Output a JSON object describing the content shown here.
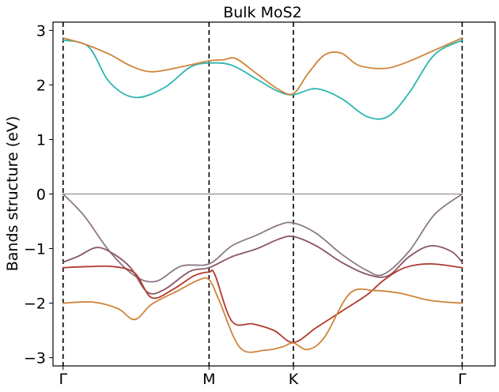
{
  "chart_data": {
    "type": "line",
    "title": "Bulk MoS2",
    "xlabel": "",
    "ylabel": "Bands structure (eV)",
    "xlim": [
      -0.12,
      5.12
    ],
    "ylim": [
      -3.15,
      3.15
    ],
    "yticks": [
      -3,
      -2,
      -1,
      0,
      1,
      2,
      3
    ],
    "ytick_labels": [
      "−3",
      "−2",
      "−1",
      "0",
      "1",
      "2",
      "3"
    ],
    "kpoints": [
      {
        "label": "Γ",
        "x": 0
      },
      {
        "label": "M",
        "x": 1.73
      },
      {
        "label": "K",
        "x": 2.73
      },
      {
        "label": "Γ",
        "x": 4.73
      }
    ],
    "fermi_level": 0,
    "grid": false,
    "legend": "none",
    "colors": {
      "cond_teal": "#2ab5b0",
      "cond_orange": "#d0843a",
      "val_top": "#8d7888",
      "val_mauve": "#8b5560",
      "val_red": "#b03a2e",
      "val_orange": "#d0843a",
      "fermi": "#808080",
      "kline": "#000000"
    },
    "series": [
      {
        "color_key": "cond_teal",
        "x": [
          0,
          0.3,
          0.55,
          0.85,
          1.2,
          1.5,
          1.73,
          2.0,
          2.3,
          2.55,
          2.73,
          3.0,
          3.3,
          3.6,
          3.85,
          4.1,
          4.4,
          4.73
        ],
        "y": [
          2.82,
          2.7,
          2.05,
          1.77,
          1.95,
          2.32,
          2.4,
          2.36,
          2.1,
          1.88,
          1.82,
          1.93,
          1.75,
          1.42,
          1.42,
          1.85,
          2.55,
          2.82
        ]
      },
      {
        "color_key": "cond_orange",
        "x": [
          0,
          0.25,
          0.55,
          0.8,
          1.05,
          1.4,
          1.73,
          1.9,
          2.05,
          2.3,
          2.55,
          2.73,
          2.9,
          3.1,
          3.3,
          3.5,
          3.8,
          4.05,
          4.35,
          4.73
        ],
        "y": [
          2.86,
          2.75,
          2.56,
          2.35,
          2.24,
          2.33,
          2.44,
          2.46,
          2.48,
          2.2,
          1.92,
          1.84,
          2.2,
          2.55,
          2.58,
          2.36,
          2.3,
          2.4,
          2.6,
          2.86
        ]
      },
      {
        "color_key": "val_top",
        "x": [
          0,
          0.25,
          0.55,
          0.85,
          1.1,
          1.4,
          1.73,
          2.0,
          2.3,
          2.55,
          2.73,
          3.0,
          3.3,
          3.6,
          3.8,
          4.1,
          4.4,
          4.73
        ],
        "y": [
          0.0,
          -0.4,
          -1.05,
          -1.5,
          -1.6,
          -1.32,
          -1.28,
          -0.95,
          -0.75,
          -0.57,
          -0.53,
          -0.72,
          -1.1,
          -1.4,
          -1.47,
          -1.05,
          -0.38,
          0.0
        ]
      },
      {
        "color_key": "val_mauve",
        "x": [
          0,
          0.18,
          0.4,
          0.6,
          0.8,
          1.0,
          1.2,
          1.5,
          1.73,
          2.0,
          2.3,
          2.55,
          2.73,
          3.0,
          3.3,
          3.6,
          3.85,
          4.1,
          4.35,
          4.6,
          4.73
        ],
        "y": [
          -1.25,
          -1.14,
          -0.98,
          -1.1,
          -1.35,
          -1.8,
          -1.75,
          -1.42,
          -1.35,
          -1.15,
          -1.0,
          -0.83,
          -0.78,
          -0.95,
          -1.25,
          -1.47,
          -1.5,
          -1.15,
          -0.95,
          -1.05,
          -1.25
        ]
      },
      {
        "color_key": "val_red",
        "x": [
          0,
          0.3,
          0.6,
          0.85,
          1.05,
          1.3,
          1.55,
          1.73,
          1.8,
          2.0,
          2.25,
          2.5,
          2.73,
          3.0,
          3.3,
          3.6,
          3.8,
          4.05,
          4.35,
          4.73
        ],
        "y": [
          -1.35,
          -1.33,
          -1.33,
          -1.45,
          -1.9,
          -1.75,
          -1.5,
          -1.43,
          -1.48,
          -2.33,
          -2.38,
          -2.5,
          -2.72,
          -2.45,
          -2.15,
          -1.85,
          -1.58,
          -1.35,
          -1.28,
          -1.35
        ]
      },
      {
        "color_key": "val_orange",
        "x": [
          0,
          0.35,
          0.65,
          0.85,
          1.05,
          1.35,
          1.6,
          1.73,
          1.85,
          2.1,
          2.4,
          2.6,
          2.73,
          2.9,
          3.1,
          3.4,
          3.7,
          4.0,
          4.35,
          4.73
        ],
        "y": [
          -2.0,
          -1.98,
          -2.1,
          -2.3,
          -2.02,
          -1.78,
          -1.58,
          -1.57,
          -1.95,
          -2.82,
          -2.86,
          -2.8,
          -2.73,
          -2.85,
          -2.62,
          -1.82,
          -1.77,
          -1.82,
          -1.95,
          -2.0
        ]
      }
    ]
  }
}
